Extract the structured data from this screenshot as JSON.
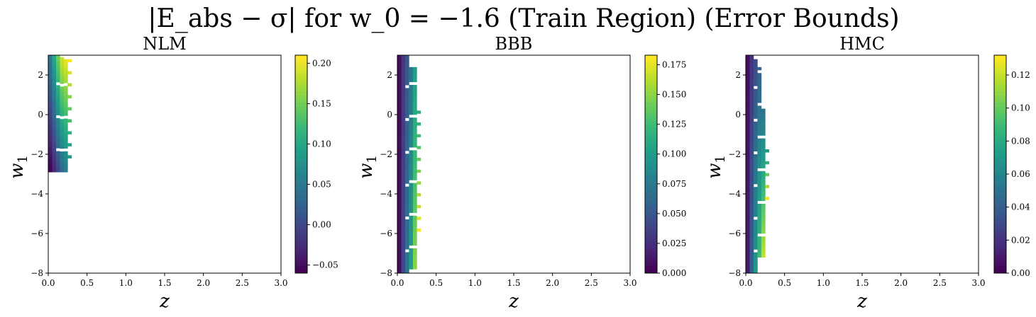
{
  "figure": {
    "title": "|E_abs − σ| for w_0 = −1.6 (Train Region) (Error Bounds)"
  },
  "chart_data": [
    {
      "type": "heatmap",
      "title": "NLM",
      "xlabel": "z",
      "ylabel": "w_1",
      "xlim": [
        0.0,
        3.0
      ],
      "ylim": [
        -8,
        3
      ],
      "xticks": [
        "0.0",
        "0.5",
        "1.0",
        "1.5",
        "2.0",
        "2.5",
        "3.0"
      ],
      "yticks": [
        "−8",
        "−6",
        "−4",
        "−2",
        "0",
        "2"
      ],
      "colorbar": {
        "min": -0.06,
        "max": 0.21,
        "ticks": [
          "−0.05",
          "0.00",
          "0.05",
          "0.10",
          "0.15",
          "0.20"
        ],
        "tick_values": [
          -0.05,
          0.0,
          0.05,
          0.1,
          0.15,
          0.2
        ]
      },
      "cells": {
        "x_bin_width": 0.05,
        "columns": [
          {
            "x": [
              0.0,
              0.05
            ],
            "w1": [
              -2.9,
              3.0
            ],
            "value_bottom": -0.06,
            "value_top": 0.05
          },
          {
            "x": [
              0.05,
              0.1
            ],
            "w1": [
              -2.9,
              3.0
            ],
            "value_bottom": -0.03,
            "value_top": 0.1
          },
          {
            "x": [
              0.1,
              0.15
            ],
            "w1": [
              -2.9,
              3.0
            ],
            "value_bottom": 0.0,
            "value_top": 0.15
          },
          {
            "x": [
              0.15,
              0.2
            ],
            "w1": [
              -2.9,
              2.9
            ],
            "value_bottom": 0.03,
            "value_top": 0.19
          },
          {
            "x": [
              0.2,
              0.25
            ],
            "w1": [
              -2.9,
              2.8
            ],
            "value_bottom": 0.05,
            "value_top": 0.2
          },
          {
            "x": [
              0.25,
              0.3
            ],
            "w1": [
              -2.2,
              2.8
            ],
            "value_bottom": 0.08,
            "value_top": 0.21,
            "sparse": true
          }
        ]
      }
    },
    {
      "type": "heatmap",
      "title": "BBB",
      "xlabel": "z",
      "ylabel": "w_1",
      "xlim": [
        0.0,
        3.0
      ],
      "ylim": [
        -8,
        3
      ],
      "xticks": [
        "0.0",
        "0.5",
        "1.0",
        "1.5",
        "2.0",
        "2.5",
        "3.0"
      ],
      "yticks": [
        "−8",
        "−6",
        "−4",
        "−2",
        "0",
        "2"
      ],
      "colorbar": {
        "min": 0.0,
        "max": 0.183,
        "ticks": [
          "0.000",
          "0.025",
          "0.050",
          "0.075",
          "0.100",
          "0.125",
          "0.150",
          "0.175"
        ],
        "tick_values": [
          0.0,
          0.025,
          0.05,
          0.075,
          0.1,
          0.125,
          0.15,
          0.175
        ]
      },
      "cells": {
        "x_bin_width": 0.05,
        "columns": [
          {
            "x": [
              0.0,
              0.05
            ],
            "w1": [
              -8.0,
              3.0
            ],
            "value_bottom": 0.005,
            "value_top": 0.005
          },
          {
            "x": [
              0.05,
              0.1
            ],
            "w1": [
              -8.0,
              3.0
            ],
            "value_bottom": 0.04,
            "value_top": 0.03
          },
          {
            "x": [
              0.1,
              0.15
            ],
            "w1": [
              -8.0,
              3.0
            ],
            "value_bottom": 0.07,
            "value_top": 0.05
          },
          {
            "x": [
              0.15,
              0.2
            ],
            "w1": [
              -7.8,
              2.4
            ],
            "value_bottom": 0.1,
            "value_top": 0.07
          },
          {
            "x": [
              0.2,
              0.25
            ],
            "w1": [
              -7.8,
              2.4
            ],
            "value_bottom": 0.15,
            "value_top": 0.1
          },
          {
            "x": [
              0.25,
              0.3
            ],
            "w1": [
              -5.9,
              0.5
            ],
            "value_bottom": 0.18,
            "value_top": 0.11,
            "sparse": true
          }
        ]
      }
    },
    {
      "type": "heatmap",
      "title": "HMC",
      "xlabel": "z",
      "ylabel": "w_1",
      "xlim": [
        0.0,
        3.0
      ],
      "ylim": [
        -8,
        3
      ],
      "xticks": [
        "0.0",
        "0.5",
        "1.0",
        "1.5",
        "2.0",
        "2.5",
        "3.0"
      ],
      "yticks": [
        "−8",
        "−6",
        "−4",
        "−2",
        "0",
        "2"
      ],
      "colorbar": {
        "min": 0.0,
        "max": 0.132,
        "ticks": [
          "0.00",
          "0.02",
          "0.04",
          "0.06",
          "0.08",
          "0.10",
          "0.12"
        ],
        "tick_values": [
          0.0,
          0.02,
          0.04,
          0.06,
          0.08,
          0.1,
          0.12
        ]
      },
      "cells": {
        "x_bin_width": 0.05,
        "columns": [
          {
            "x": [
              0.0,
              0.05
            ],
            "w1": [
              -8.0,
              3.0
            ],
            "value_bottom": 0.01,
            "value_top": 0.005
          },
          {
            "x": [
              0.05,
              0.1
            ],
            "w1": [
              -8.0,
              3.0
            ],
            "value_bottom": 0.04,
            "value_top": 0.02
          },
          {
            "x": [
              0.1,
              0.15
            ],
            "w1": [
              -8.0,
              2.8
            ],
            "value_bottom": 0.07,
            "value_top": 0.03
          },
          {
            "x": [
              0.15,
              0.2
            ],
            "w1": [
              -7.2,
              2.4
            ],
            "value_bottom": 0.09,
            "value_top": 0.04
          },
          {
            "x": [
              0.2,
              0.25
            ],
            "w1": [
              -7.2,
              0.3
            ],
            "value_bottom": 0.12,
            "value_top": 0.05
          },
          {
            "x": [
              0.25,
              0.3
            ],
            "w1": [
              -4.3,
              -1.3
            ],
            "value_bottom": 0.13,
            "value_top": 0.06,
            "sparse": true
          }
        ]
      }
    }
  ]
}
